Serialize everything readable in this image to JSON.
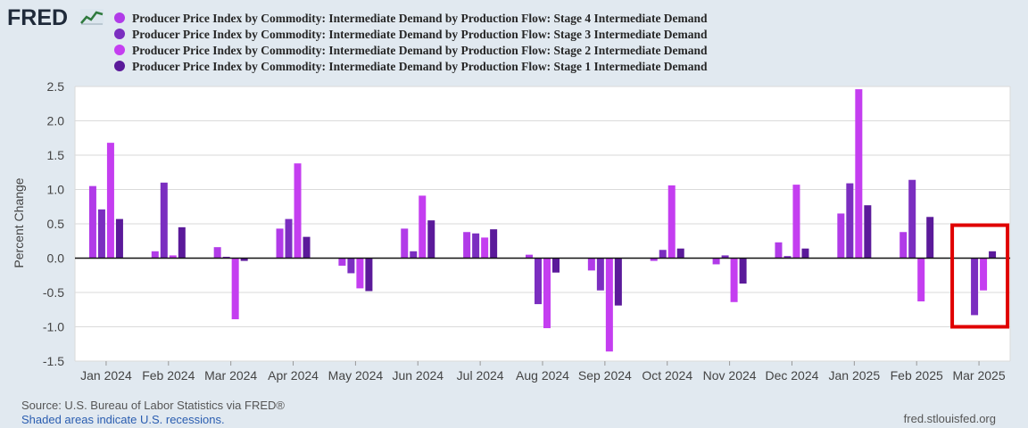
{
  "header": {
    "logo_text": "FRED",
    "logo_icon": "line-chart-icon"
  },
  "chart_data": {
    "type": "bar",
    "categories": [
      "Jan 2024",
      "Feb 2024",
      "Mar 2024",
      "Apr 2024",
      "May 2024",
      "Jun 2024",
      "Jul 2024",
      "Aug 2024",
      "Sep 2024",
      "Oct 2024",
      "Nov 2024",
      "Dec 2024",
      "Jan 2025",
      "Feb 2025",
      "Mar 2025"
    ],
    "series": [
      {
        "name": "Producer Price Index by Commodity: Intermediate Demand by Production Flow: Stage 4 Intermediate Demand",
        "color": "#b13be8",
        "values": [
          1.05,
          0.1,
          0.16,
          0.43,
          -0.11,
          0.43,
          0.38,
          0.05,
          -0.18,
          -0.04,
          -0.09,
          0.23,
          0.65,
          0.38,
          null
        ]
      },
      {
        "name": "Producer Price Index by Commodity: Intermediate Demand by Production Flow: Stage 3 Intermediate Demand",
        "color": "#7b2ec0",
        "values": [
          0.71,
          1.1,
          0.02,
          0.57,
          -0.22,
          0.1,
          0.36,
          -0.67,
          -0.47,
          0.12,
          0.04,
          0.03,
          1.09,
          1.14,
          -0.83
        ]
      },
      {
        "name": "Producer Price Index by Commodity: Intermediate Demand by Production Flow: Stage 2 Intermediate Demand",
        "color": "#c43ef0",
        "values": [
          1.68,
          0.04,
          -0.89,
          1.38,
          -0.44,
          0.91,
          0.3,
          -1.02,
          -1.36,
          1.06,
          -0.64,
          1.07,
          2.46,
          -0.63,
          -0.47
        ]
      },
      {
        "name": "Producer Price Index by Commodity: Intermediate Demand by Production Flow: Stage 1 Intermediate Demand",
        "color": "#5b1a9a",
        "values": [
          0.57,
          0.45,
          -0.04,
          0.31,
          -0.48,
          0.55,
          0.42,
          -0.21,
          -0.69,
          0.14,
          -0.37,
          0.14,
          0.77,
          0.6,
          0.1
        ]
      }
    ],
    "ylabel": "Percent Change",
    "ylim": [
      -1.5,
      2.5
    ],
    "yticks": [
      "2.5",
      "2.0",
      "1.5",
      "1.0",
      "0.5",
      "0.0",
      "-0.5",
      "-1.0",
      "-1.5"
    ],
    "grid": true,
    "annotation": {
      "type": "highlight-box",
      "category": "Mar 2025",
      "color": "#e00000"
    }
  },
  "footer": {
    "source": "Source: U.S. Bureau of Labor Statistics via FRED®",
    "recessions": "Shaded areas indicate U.S. recessions.",
    "site": "fred.stlouisfed.org"
  }
}
